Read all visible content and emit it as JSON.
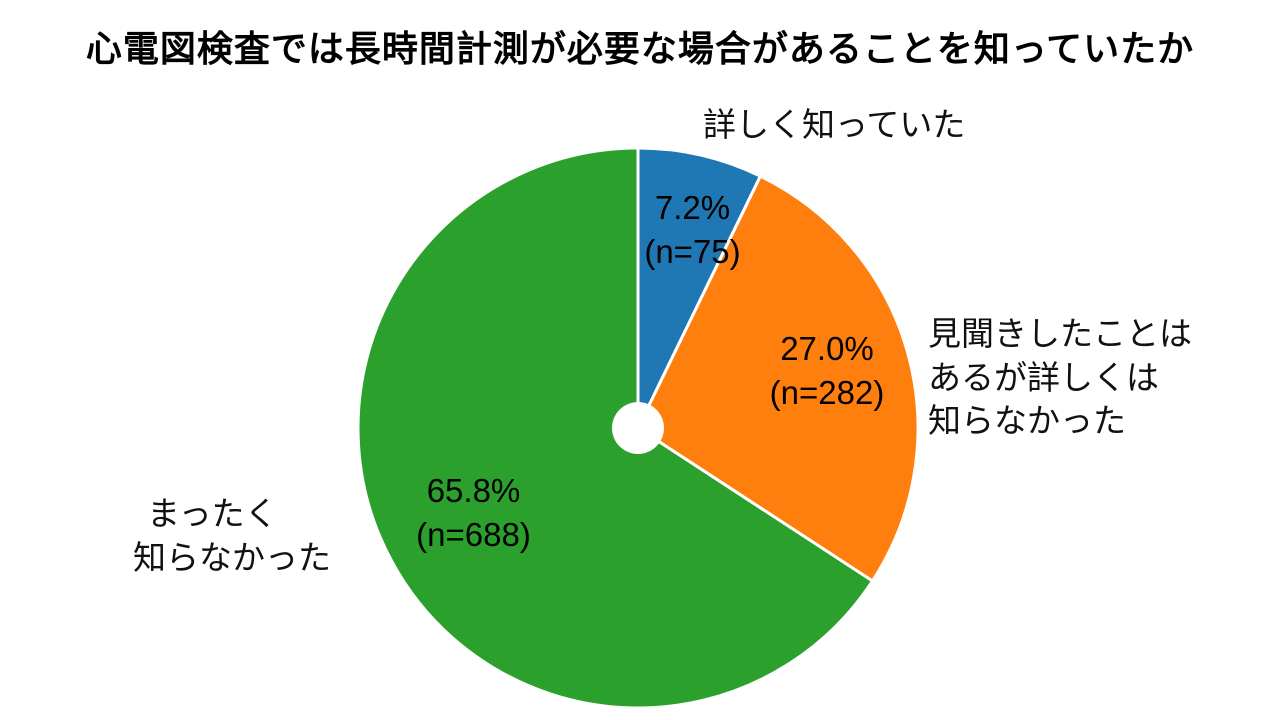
{
  "title": "心電図検査では長時間計測が必要な場合があることを知っていたか",
  "chart_data": {
    "type": "pie",
    "title": "心電図検査では長時間計測が必要な場合があることを知っていたか",
    "start_angle_deg": -90,
    "direction": "clockwise",
    "donut_hole": true,
    "background_color": "#ffffff",
    "slices": [
      {
        "label": "詳しく知っていた",
        "label_lines": [
          "詳しく知っていた"
        ],
        "pct": 7.2,
        "n": 75,
        "pct_label": "7.2%",
        "n_label": "(n=75)",
        "color": "#1f77b4"
      },
      {
        "label": "見聞きしたことはあるが詳しくは知らなかった",
        "label_lines": [
          "見聞きしたことは",
          "あるが詳しくは",
          "知らなかった"
        ],
        "pct": 27.0,
        "n": 282,
        "pct_label": "27.0%",
        "n_label": "(n=282)",
        "color": "#ff7f0e"
      },
      {
        "label": "まったく知らなかった",
        "label_lines": [
          "まったく",
          "知らなかった"
        ],
        "pct": 65.8,
        "n": 688,
        "pct_label": "65.8%",
        "n_label": "(n=688)",
        "color": "#2ca02c"
      }
    ]
  }
}
